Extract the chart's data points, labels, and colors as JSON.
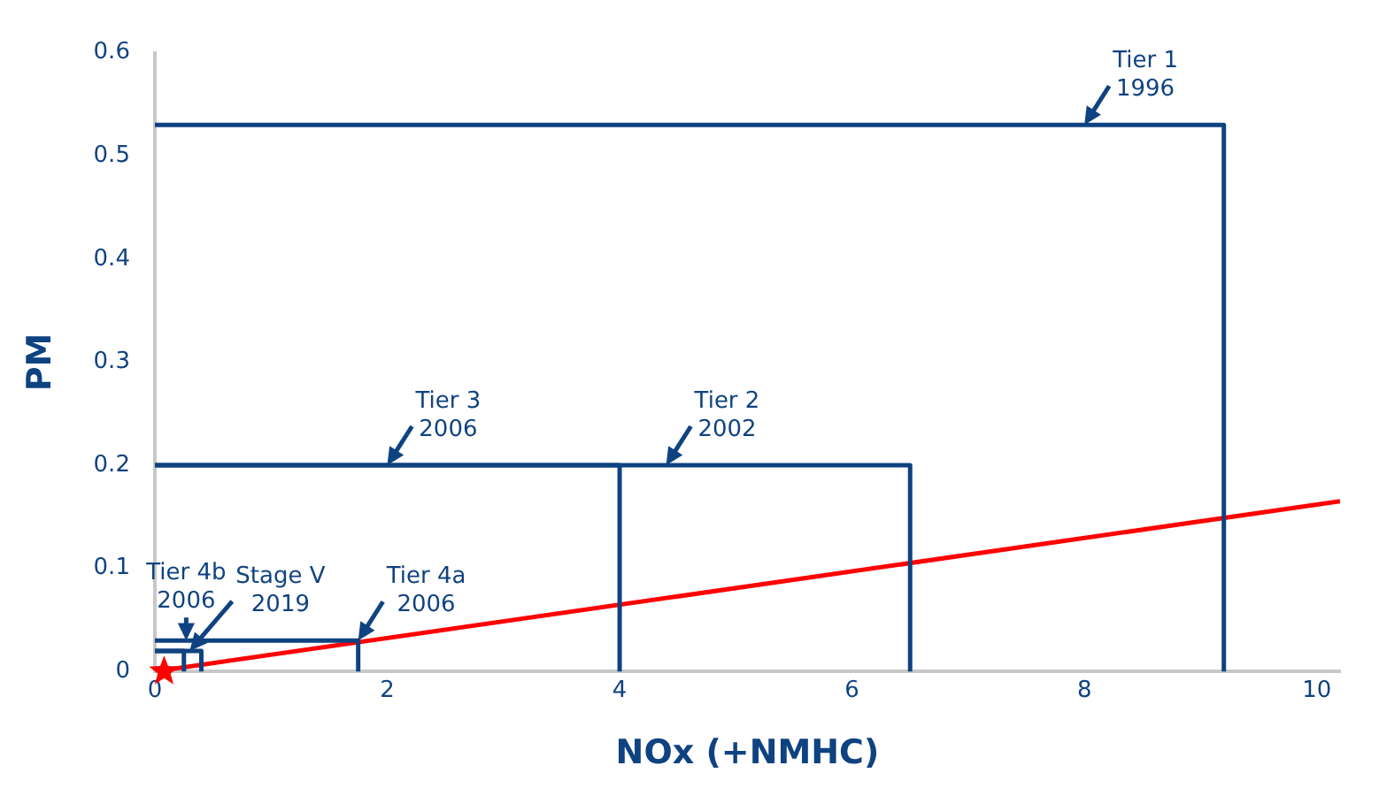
{
  "chart_data": {
    "type": "line",
    "xlabel": "NOx (+NMHC)",
    "ylabel": "PM",
    "xlim": [
      0,
      10.2
    ],
    "ylim": [
      0,
      0.6
    ],
    "xticks": [
      0,
      2,
      4,
      6,
      8,
      10
    ],
    "yticks": [
      0,
      0.1,
      0.2,
      0.3,
      0.4,
      0.5,
      0.6
    ],
    "grid": false,
    "legend": false,
    "marker": "none",
    "line_style": "solid",
    "series": [
      {
        "color": "#0f4280",
        "x": [
          0,
          9.2,
          9.2
        ],
        "values": [
          0.53,
          0.53,
          0
        ]
      },
      {
        "color": "#0f4280",
        "x": [
          0,
          6.5,
          6.5
        ],
        "values": [
          0.2,
          0.2,
          0
        ]
      },
      {
        "color": "#0f4280",
        "x": [
          0,
          4,
          4
        ],
        "values": [
          0.2,
          0.2,
          0
        ]
      },
      {
        "color": "#0f4280",
        "x": [
          0,
          1.75,
          1.75
        ],
        "values": [
          0.03,
          0.03,
          0
        ]
      },
      {
        "color": "#0f4280",
        "x": [
          0,
          0.4,
          0.4
        ],
        "values": [
          0.02,
          0.02,
          0
        ]
      },
      {
        "color": "#0f4280",
        "x": [
          0,
          0.25,
          0.25
        ],
        "values": [
          0.02,
          0.02,
          0
        ]
      },
      {
        "color": "#ff0000",
        "x": [
          0,
          10.2
        ],
        "values": [
          0,
          0.165
        ]
      },
      {
        "type": "scatter",
        "marker": "star",
        "color": "#ff0000",
        "x": [
          0.08
        ],
        "values": [
          0
        ]
      }
    ],
    "annotations": [
      {
        "text": "Tier 1\n1996",
        "x": 8,
        "y": 0.53
      },
      {
        "text": "Tier 3\n2006",
        "x": 2,
        "y": 0.2
      },
      {
        "text": "Tier 2\n2002",
        "x": 4.4,
        "y": 0.2
      },
      {
        "text": "Tier 4b\n2006",
        "x": 0.27,
        "y": 0.03
      },
      {
        "text": "Stage V\n2019",
        "x": 0.3,
        "y": 0.02
      },
      {
        "text": "Tier 4a\n2006",
        "x": 1.75,
        "y": 0.03
      }
    ]
  }
}
